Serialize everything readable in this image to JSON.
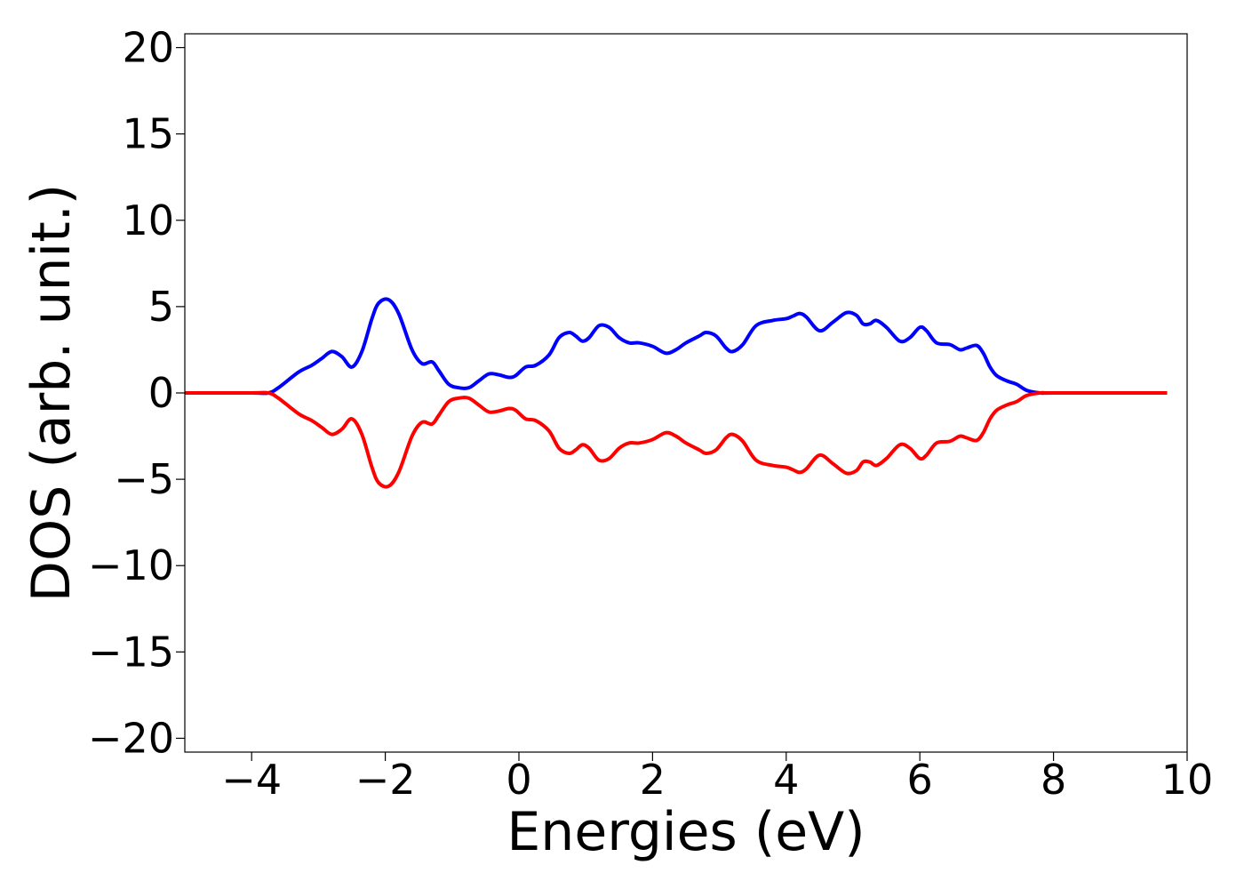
{
  "chart_data": {
    "type": "line",
    "title": "",
    "xlabel": "Energies (eV)",
    "ylabel": "DOS (arb. unit.)",
    "xlim": [
      -5.0,
      10.0
    ],
    "ylim": [
      -20.8,
      20.8
    ],
    "xticks": [
      -4,
      -2,
      0,
      2,
      4,
      6,
      8,
      10
    ],
    "xtick_labels": [
      "−4",
      "−2",
      "0",
      "2",
      "4",
      "6",
      "8",
      "10"
    ],
    "yticks": [
      -20,
      -15,
      -10,
      -5,
      0,
      5,
      10,
      15,
      20
    ],
    "ytick_labels": [
      "−20",
      "−15",
      "−10",
      "−5",
      "0",
      "5",
      "10",
      "15",
      "20"
    ],
    "grid": false,
    "legend": false,
    "series": [
      {
        "color": "#0000ff",
        "x": [
          -5.0,
          -4.0,
          -3.75,
          -3.6,
          -3.3,
          -3.1,
          -2.95,
          -2.8,
          -2.65,
          -2.5,
          -2.35,
          -2.2,
          -2.1,
          -1.95,
          -1.8,
          -1.6,
          -1.45,
          -1.3,
          -1.2,
          -1.05,
          -0.9,
          -0.75,
          -0.6,
          -0.45,
          -0.3,
          -0.15,
          -0.05,
          0.1,
          0.25,
          0.45,
          0.6,
          0.75,
          0.85,
          0.95,
          1.05,
          1.2,
          1.35,
          1.5,
          1.65,
          1.8,
          2.0,
          2.2,
          2.35,
          2.5,
          2.7,
          2.8,
          2.95,
          3.1,
          3.2,
          3.35,
          3.55,
          3.8,
          4.0,
          4.1,
          4.2,
          4.3,
          4.5,
          4.7,
          4.9,
          5.05,
          5.15,
          5.25,
          5.35,
          5.5,
          5.7,
          5.85,
          6.0,
          6.1,
          6.25,
          6.45,
          6.6,
          6.7,
          6.85,
          6.95,
          7.05,
          7.15,
          7.3,
          7.45,
          7.6,
          7.8,
          8.0,
          9.0,
          9.7
        ],
        "y": [
          0.0,
          0.0,
          0.0,
          0.3,
          1.2,
          1.6,
          2.0,
          2.4,
          2.1,
          1.5,
          2.4,
          4.3,
          5.2,
          5.4,
          4.6,
          2.5,
          1.7,
          1.8,
          1.3,
          0.5,
          0.3,
          0.3,
          0.7,
          1.1,
          1.05,
          0.9,
          1.0,
          1.5,
          1.6,
          2.2,
          3.2,
          3.5,
          3.3,
          3.0,
          3.2,
          3.9,
          3.8,
          3.2,
          2.9,
          2.9,
          2.7,
          2.3,
          2.5,
          2.9,
          3.3,
          3.5,
          3.3,
          2.6,
          2.4,
          2.8,
          3.9,
          4.2,
          4.3,
          4.45,
          4.6,
          4.4,
          3.6,
          4.1,
          4.65,
          4.5,
          4.0,
          4.0,
          4.2,
          3.8,
          3.0,
          3.2,
          3.8,
          3.6,
          2.9,
          2.8,
          2.5,
          2.6,
          2.75,
          2.3,
          1.5,
          1.0,
          0.7,
          0.5,
          0.15,
          0.0,
          0.0,
          0.0,
          0.0
        ]
      },
      {
        "color": "#ff0000",
        "x": [
          -5.0,
          -4.0,
          -3.75,
          -3.6,
          -3.3,
          -3.1,
          -2.95,
          -2.8,
          -2.65,
          -2.5,
          -2.35,
          -2.2,
          -2.1,
          -1.95,
          -1.8,
          -1.6,
          -1.45,
          -1.3,
          -1.2,
          -1.05,
          -0.9,
          -0.75,
          -0.6,
          -0.45,
          -0.3,
          -0.15,
          -0.05,
          0.1,
          0.25,
          0.45,
          0.6,
          0.75,
          0.85,
          0.95,
          1.05,
          1.2,
          1.35,
          1.5,
          1.65,
          1.8,
          2.0,
          2.2,
          2.35,
          2.5,
          2.7,
          2.8,
          2.95,
          3.1,
          3.2,
          3.35,
          3.55,
          3.8,
          4.0,
          4.1,
          4.2,
          4.3,
          4.5,
          4.7,
          4.9,
          5.05,
          5.15,
          5.25,
          5.35,
          5.5,
          5.7,
          5.85,
          6.0,
          6.1,
          6.25,
          6.45,
          6.6,
          6.7,
          6.85,
          6.95,
          7.05,
          7.15,
          7.3,
          7.45,
          7.6,
          7.8,
          8.0,
          9.0,
          9.7
        ],
        "y": [
          0.0,
          0.0,
          0.0,
          -0.3,
          -1.2,
          -1.6,
          -2.0,
          -2.4,
          -2.1,
          -1.5,
          -2.4,
          -4.3,
          -5.2,
          -5.4,
          -4.6,
          -2.5,
          -1.7,
          -1.8,
          -1.3,
          -0.5,
          -0.3,
          -0.3,
          -0.7,
          -1.1,
          -1.05,
          -0.9,
          -1.0,
          -1.5,
          -1.6,
          -2.2,
          -3.2,
          -3.5,
          -3.3,
          -3.0,
          -3.2,
          -3.9,
          -3.8,
          -3.2,
          -2.9,
          -2.9,
          -2.7,
          -2.3,
          -2.5,
          -2.9,
          -3.3,
          -3.5,
          -3.3,
          -2.6,
          -2.4,
          -2.8,
          -3.9,
          -4.2,
          -4.3,
          -4.45,
          -4.6,
          -4.4,
          -3.6,
          -4.1,
          -4.65,
          -4.5,
          -4.0,
          -4.0,
          -4.2,
          -3.8,
          -3.0,
          -3.2,
          -3.8,
          -3.6,
          -2.9,
          -2.8,
          -2.5,
          -2.6,
          -2.75,
          -2.3,
          -1.5,
          -1.0,
          -0.7,
          -0.5,
          -0.15,
          0.0,
          0.0,
          0.0,
          0.0
        ]
      }
    ]
  }
}
